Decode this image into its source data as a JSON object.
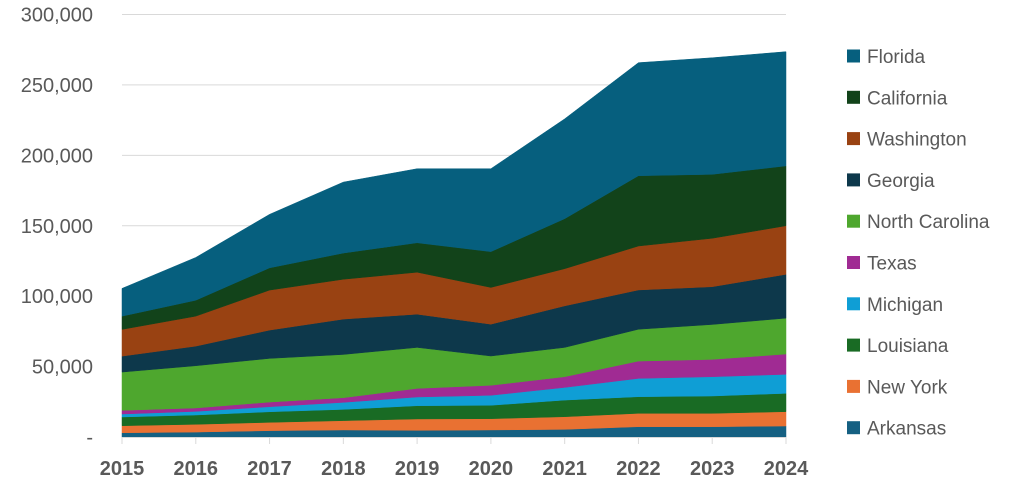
{
  "chart_data": {
    "type": "area",
    "stacked": true,
    "title": "",
    "xlabel": "",
    "ylabel": "",
    "x": [
      "2015",
      "2016",
      "2017",
      "2018",
      "2019",
      "2020",
      "2021",
      "2022",
      "2023",
      "2024"
    ],
    "ylim": [
      0,
      300000
    ],
    "yticks": [
      0,
      50000,
      100000,
      150000,
      200000,
      250000,
      300000
    ],
    "ytick_labels": [
      "-",
      "50,000",
      "100,000",
      "150,000",
      "200,000",
      "250,000",
      "300,000"
    ],
    "grid": true,
    "legend_position": "right",
    "series": [
      {
        "name": "Arkansas",
        "color": "#156082",
        "values": [
          3000,
          3500,
          4500,
          5000,
          4700,
          5000,
          5400,
          7300,
          7300,
          7800
        ]
      },
      {
        "name": "New York",
        "color": "#e97132",
        "values": [
          5000,
          5500,
          5900,
          6600,
          8100,
          8000,
          9000,
          9500,
          9500,
          10200
        ]
      },
      {
        "name": "Louisiana",
        "color": "#196b24",
        "values": [
          6200,
          6600,
          7500,
          8000,
          9400,
          9500,
          11800,
          11800,
          12300,
          13000
        ]
      },
      {
        "name": "Michigan",
        "color": "#0f9ed5",
        "values": [
          2100,
          2600,
          3600,
          5000,
          6200,
          7100,
          9000,
          13000,
          13700,
          13500
        ]
      },
      {
        "name": "Texas",
        "color": "#a02b93",
        "values": [
          2600,
          2400,
          3300,
          3300,
          6100,
          7100,
          7600,
          12300,
          12300,
          14400
        ]
      },
      {
        "name": "North Carolina",
        "color": "#4ea72e",
        "values": [
          27200,
          30000,
          31000,
          30700,
          29100,
          20800,
          20800,
          22600,
          24800,
          25500
        ]
      },
      {
        "name": "Georgia",
        "color": "#0d384b",
        "values": [
          11300,
          13900,
          20100,
          25100,
          23600,
          22600,
          29500,
          27900,
          26800,
          31100
        ]
      },
      {
        "name": "Washington",
        "color": "#994212",
        "values": [
          19000,
          21300,
          28400,
          28300,
          29800,
          26100,
          26400,
          31200,
          34400,
          34500
        ]
      },
      {
        "name": "California",
        "color": "#12431a",
        "values": [
          9400,
          11300,
          15800,
          18600,
          20900,
          25400,
          35500,
          49900,
          45400,
          42500
        ]
      },
      {
        "name": "Florida",
        "color": "#065f7e",
        "values": [
          19700,
          30400,
          38000,
          50400,
          52600,
          58900,
          70900,
          80300,
          82800,
          81100
        ]
      }
    ],
    "legend_order": [
      "Florida",
      "California",
      "Washington",
      "Georgia",
      "North Carolina",
      "Texas",
      "Michigan",
      "Louisiana",
      "New York",
      "Arkansas"
    ]
  }
}
